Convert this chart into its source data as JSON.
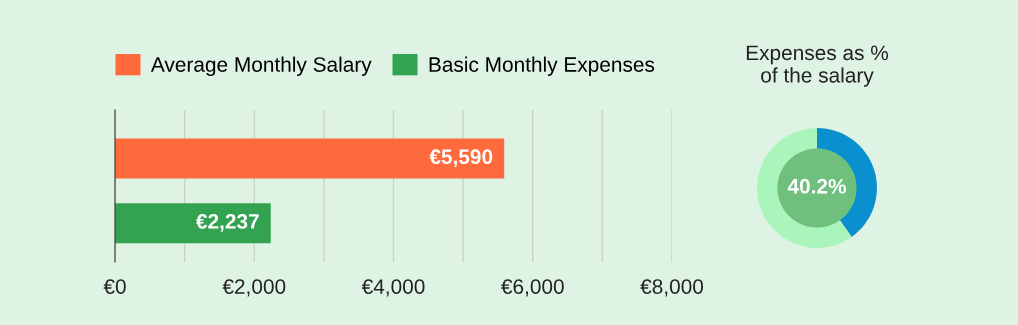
{
  "chart_data": [
    {
      "type": "bar",
      "orientation": "horizontal",
      "categories": [
        null,
        null
      ],
      "series": [
        {
          "name": "Average Monthly Salary",
          "color": "#ff6a3d",
          "values": [
            5590,
            null
          ],
          "value_labels": [
            "€5,590",
            null
          ]
        },
        {
          "name": "Basic Monthly Expenses",
          "color": "#33a352",
          "values": [
            null,
            2237
          ],
          "value_labels": [
            null,
            "€2,237"
          ]
        }
      ],
      "xlim": [
        0,
        8000
      ],
      "xticks": [
        {
          "value": 0,
          "label": "€0"
        },
        {
          "value": 1000,
          "label": null
        },
        {
          "value": 2000,
          "label": "€2,000"
        },
        {
          "value": 3000,
          "label": null
        },
        {
          "value": 4000,
          "label": "€4,000"
        },
        {
          "value": 5000,
          "label": null
        },
        {
          "value": 6000,
          "label": "€6,000"
        },
        {
          "value": 7000,
          "label": null
        },
        {
          "value": 8000,
          "label": "€8,000"
        }
      ],
      "tick_labels": "x",
      "grid": "x",
      "legend": "top left"
    },
    {
      "type": "donut",
      "title": "Expenses as %\nof the salary",
      "categories": [
        null,
        null
      ],
      "values": [
        40.2,
        59.8
      ],
      "colors": [
        "#0a8fcf",
        "#aaf5bb"
      ],
      "annotations": [
        "40.2%"
      ]
    }
  ]
}
